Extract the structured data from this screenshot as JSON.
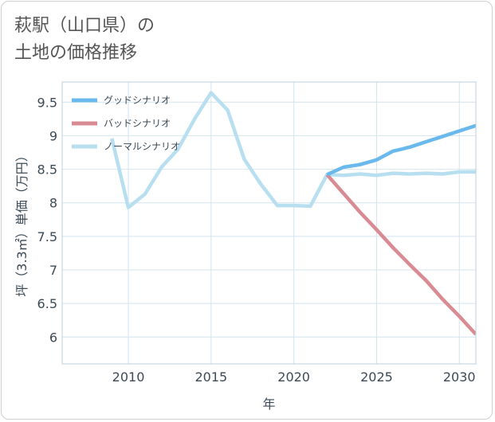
{
  "title_lines": [
    "萩駅（山口県）の",
    "土地の価格推移"
  ],
  "chart_data": {
    "type": "line",
    "title": "萩駅（山口県）の土地の価格推移",
    "xlabel": "年",
    "ylabel": "坪（3.3㎡）単価（万円）",
    "xlim": [
      2006,
      2031
    ],
    "ylim": [
      5.6,
      9.8
    ],
    "xticks": [
      2010,
      2015,
      2020,
      2025,
      2030
    ],
    "xtick_labels": [
      "2010",
      "2015",
      "2020",
      "2025",
      "2030"
    ],
    "yticks": [
      6,
      6.5,
      7,
      7.5,
      8,
      8.5,
      9,
      9.5
    ],
    "ytick_labels": [
      "6",
      "6.5",
      "7",
      "7.5",
      "8",
      "8.5",
      "9",
      "9.5"
    ],
    "grid": true,
    "legend_position": "top-left",
    "series": [
      {
        "name": "グッドシナリオ",
        "color": "#6ab9ec",
        "x": [
          2022,
          2023,
          2024,
          2025,
          2026,
          2027,
          2028,
          2029,
          2030,
          2031
        ],
        "y": [
          8.42,
          8.53,
          8.57,
          8.64,
          8.77,
          8.83,
          8.91,
          8.99,
          9.07,
          9.15
        ]
      },
      {
        "name": "バッドシナリオ",
        "color": "#d98b94",
        "x": [
          2022,
          2023,
          2024,
          2025,
          2026,
          2027,
          2028,
          2029,
          2030,
          2031
        ],
        "y": [
          8.42,
          8.14,
          7.86,
          7.6,
          7.33,
          7.08,
          6.84,
          6.56,
          6.31,
          6.04
        ]
      },
      {
        "name": "ノーマルシナリオ",
        "color": "#b8dff0",
        "x": [
          2009,
          2010,
          2011,
          2012,
          2013,
          2014,
          2015,
          2016,
          2017,
          2018,
          2019,
          2020,
          2021,
          2022,
          2023,
          2024,
          2025,
          2026,
          2027,
          2028,
          2029,
          2030,
          2031
        ],
        "y": [
          8.96,
          7.93,
          8.13,
          8.53,
          8.8,
          9.25,
          9.64,
          9.38,
          8.65,
          8.28,
          7.96,
          7.96,
          7.95,
          8.42,
          8.41,
          8.43,
          8.41,
          8.44,
          8.43,
          8.44,
          8.43,
          8.46,
          8.46
        ]
      }
    ]
  }
}
